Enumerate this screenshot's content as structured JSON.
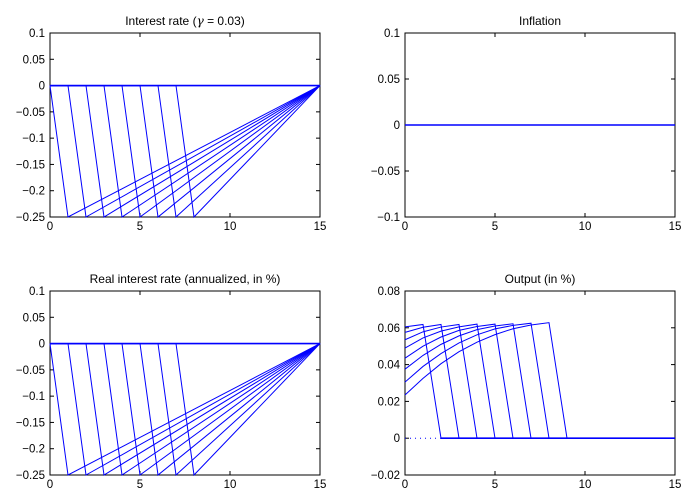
{
  "chart_data": [
    {
      "type": "line",
      "title": "Interest rate (γ = 0.03)",
      "title_prefix": "Interest rate (",
      "title_symbol": "γ",
      "title_suffix": " = 0.03)",
      "xlim": [
        0,
        15
      ],
      "ylim": [
        -0.25,
        0.1
      ],
      "xticks": [
        0,
        5,
        10,
        15
      ],
      "xtick_labels": [
        "0",
        "5",
        "10",
        "15"
      ],
      "yticks": [
        -0.25,
        -0.2,
        -0.15,
        -0.1,
        -0.05,
        0,
        0.05,
        0.1
      ],
      "ytick_labels": [
        "−0.25",
        "−0.2",
        "−0.15",
        "−0.1",
        "−0.05",
        "0",
        "0.05",
        "0.1"
      ],
      "series": [
        {
          "x": [
            0,
            0,
            1,
            15
          ],
          "y": [
            0,
            0,
            -0.25,
            0
          ]
        },
        {
          "x": [
            0,
            1,
            2,
            15
          ],
          "y": [
            0,
            0,
            -0.25,
            0
          ]
        },
        {
          "x": [
            0,
            2,
            3,
            15
          ],
          "y": [
            0,
            0,
            -0.25,
            0
          ]
        },
        {
          "x": [
            0,
            3,
            4,
            15
          ],
          "y": [
            0,
            0,
            -0.25,
            0
          ]
        },
        {
          "x": [
            0,
            4,
            5,
            15
          ],
          "y": [
            0,
            0,
            -0.25,
            0
          ]
        },
        {
          "x": [
            0,
            5,
            6,
            15
          ],
          "y": [
            0,
            0,
            -0.25,
            0
          ]
        },
        {
          "x": [
            0,
            6,
            7,
            15
          ],
          "y": [
            0,
            0,
            -0.25,
            0
          ]
        },
        {
          "x": [
            0,
            7,
            8,
            15
          ],
          "y": [
            0,
            0,
            -0.25,
            0
          ]
        }
      ],
      "shape_note": "each series: 0 until shock period, -0.25 at shock, 0 afterwards",
      "color": "#0000ff"
    },
    {
      "type": "line",
      "title": "Inflation",
      "xlim": [
        0,
        15
      ],
      "ylim": [
        -0.1,
        0.1
      ],
      "xticks": [
        0,
        5,
        10,
        15
      ],
      "xtick_labels": [
        "0",
        "5",
        "10",
        "15"
      ],
      "yticks": [
        -0.1,
        -0.05,
        0,
        0.05,
        0.1
      ],
      "ytick_labels": [
        "−0.1",
        "−0.05",
        "0",
        "0.05",
        "0.1"
      ],
      "series": [
        {
          "x": [
            0,
            15
          ],
          "y": [
            0,
            0
          ]
        }
      ],
      "color": "#0000ff"
    },
    {
      "type": "line",
      "title": "Real interest rate (annualized, in %)",
      "xlim": [
        0,
        15
      ],
      "ylim": [
        -0.25,
        0.1
      ],
      "xticks": [
        0,
        5,
        10,
        15
      ],
      "xtick_labels": [
        "0",
        "5",
        "10",
        "15"
      ],
      "yticks": [
        -0.25,
        -0.2,
        -0.15,
        -0.1,
        -0.05,
        0,
        0.05,
        0.1
      ],
      "ytick_labels": [
        "−0.25",
        "−0.2",
        "−0.15",
        "−0.1",
        "−0.05",
        "0",
        "0.05",
        "0.1"
      ],
      "series": [
        {
          "x": [
            0,
            0,
            1,
            15
          ],
          "y": [
            0,
            0,
            -0.25,
            0
          ]
        },
        {
          "x": [
            0,
            1,
            2,
            15
          ],
          "y": [
            0,
            0,
            -0.25,
            0
          ]
        },
        {
          "x": [
            0,
            2,
            3,
            15
          ],
          "y": [
            0,
            0,
            -0.25,
            0
          ]
        },
        {
          "x": [
            0,
            3,
            4,
            15
          ],
          "y": [
            0,
            0,
            -0.25,
            0
          ]
        },
        {
          "x": [
            0,
            4,
            5,
            15
          ],
          "y": [
            0,
            0,
            -0.25,
            0
          ]
        },
        {
          "x": [
            0,
            5,
            6,
            15
          ],
          "y": [
            0,
            0,
            -0.25,
            0
          ]
        },
        {
          "x": [
            0,
            6,
            7,
            15
          ],
          "y": [
            0,
            0,
            -0.25,
            0
          ]
        },
        {
          "x": [
            0,
            7,
            8,
            15
          ],
          "y": [
            0,
            0,
            -0.25,
            0
          ]
        }
      ],
      "color": "#0000ff"
    },
    {
      "type": "line",
      "title": "Output (in %)",
      "xlim": [
        0,
        15
      ],
      "ylim": [
        -0.02,
        0.08
      ],
      "xticks": [
        0,
        5,
        10,
        15
      ],
      "xtick_labels": [
        "0",
        "5",
        "10",
        "15"
      ],
      "yticks": [
        -0.02,
        0,
        0.02,
        0.04,
        0.06,
        0.08
      ],
      "ytick_labels": [
        "−0.02",
        "0",
        "0.02",
        "0.04",
        "0.06",
        "0.08"
      ],
      "series": [
        {
          "x": [
            0,
            1,
            2,
            15
          ],
          "y": [
            0.0605,
            0.0618,
            0,
            0
          ]
        },
        {
          "x": [
            0,
            1,
            2,
            3,
            15
          ],
          "y": [
            0.0575,
            0.0603,
            0.0618,
            0,
            0
          ]
        },
        {
          "x": [
            0,
            1,
            2,
            3,
            4,
            15
          ],
          "y": [
            0.0535,
            0.0578,
            0.0604,
            0.0618,
            0,
            0
          ]
        },
        {
          "x": [
            0,
            1,
            2,
            3,
            4,
            5,
            15
          ],
          "y": [
            0.049,
            0.0545,
            0.0582,
            0.0605,
            0.062,
            0,
            0
          ]
        },
        {
          "x": [
            0,
            1,
            2,
            3,
            4,
            5,
            6,
            15
          ],
          "y": [
            0.0435,
            0.05,
            0.055,
            0.0586,
            0.0607,
            0.062,
            0,
            0
          ]
        },
        {
          "x": [
            0,
            1,
            2,
            3,
            4,
            5,
            6,
            7,
            15
          ],
          "y": [
            0.0375,
            0.045,
            0.051,
            0.0556,
            0.059,
            0.061,
            0.0622,
            0,
            0
          ]
        },
        {
          "x": [
            0,
            1,
            2,
            3,
            4,
            5,
            6,
            7,
            8,
            15
          ],
          "y": [
            0.0305,
            0.039,
            0.046,
            0.0518,
            0.0562,
            0.0594,
            0.0613,
            0.0625,
            0,
            0
          ]
        },
        {
          "x": [
            0,
            1,
            2,
            3,
            4,
            5,
            6,
            7,
            8,
            9,
            15
          ],
          "y": [
            0.0235,
            0.0325,
            0.0405,
            0.047,
            0.0522,
            0.0563,
            0.0595,
            0.0615,
            0.0628,
            0,
            0
          ]
        }
      ],
      "dotted_baseline": {
        "x": [
          0,
          2
        ],
        "y": [
          0,
          0
        ]
      },
      "color": "#0000ff"
    }
  ]
}
